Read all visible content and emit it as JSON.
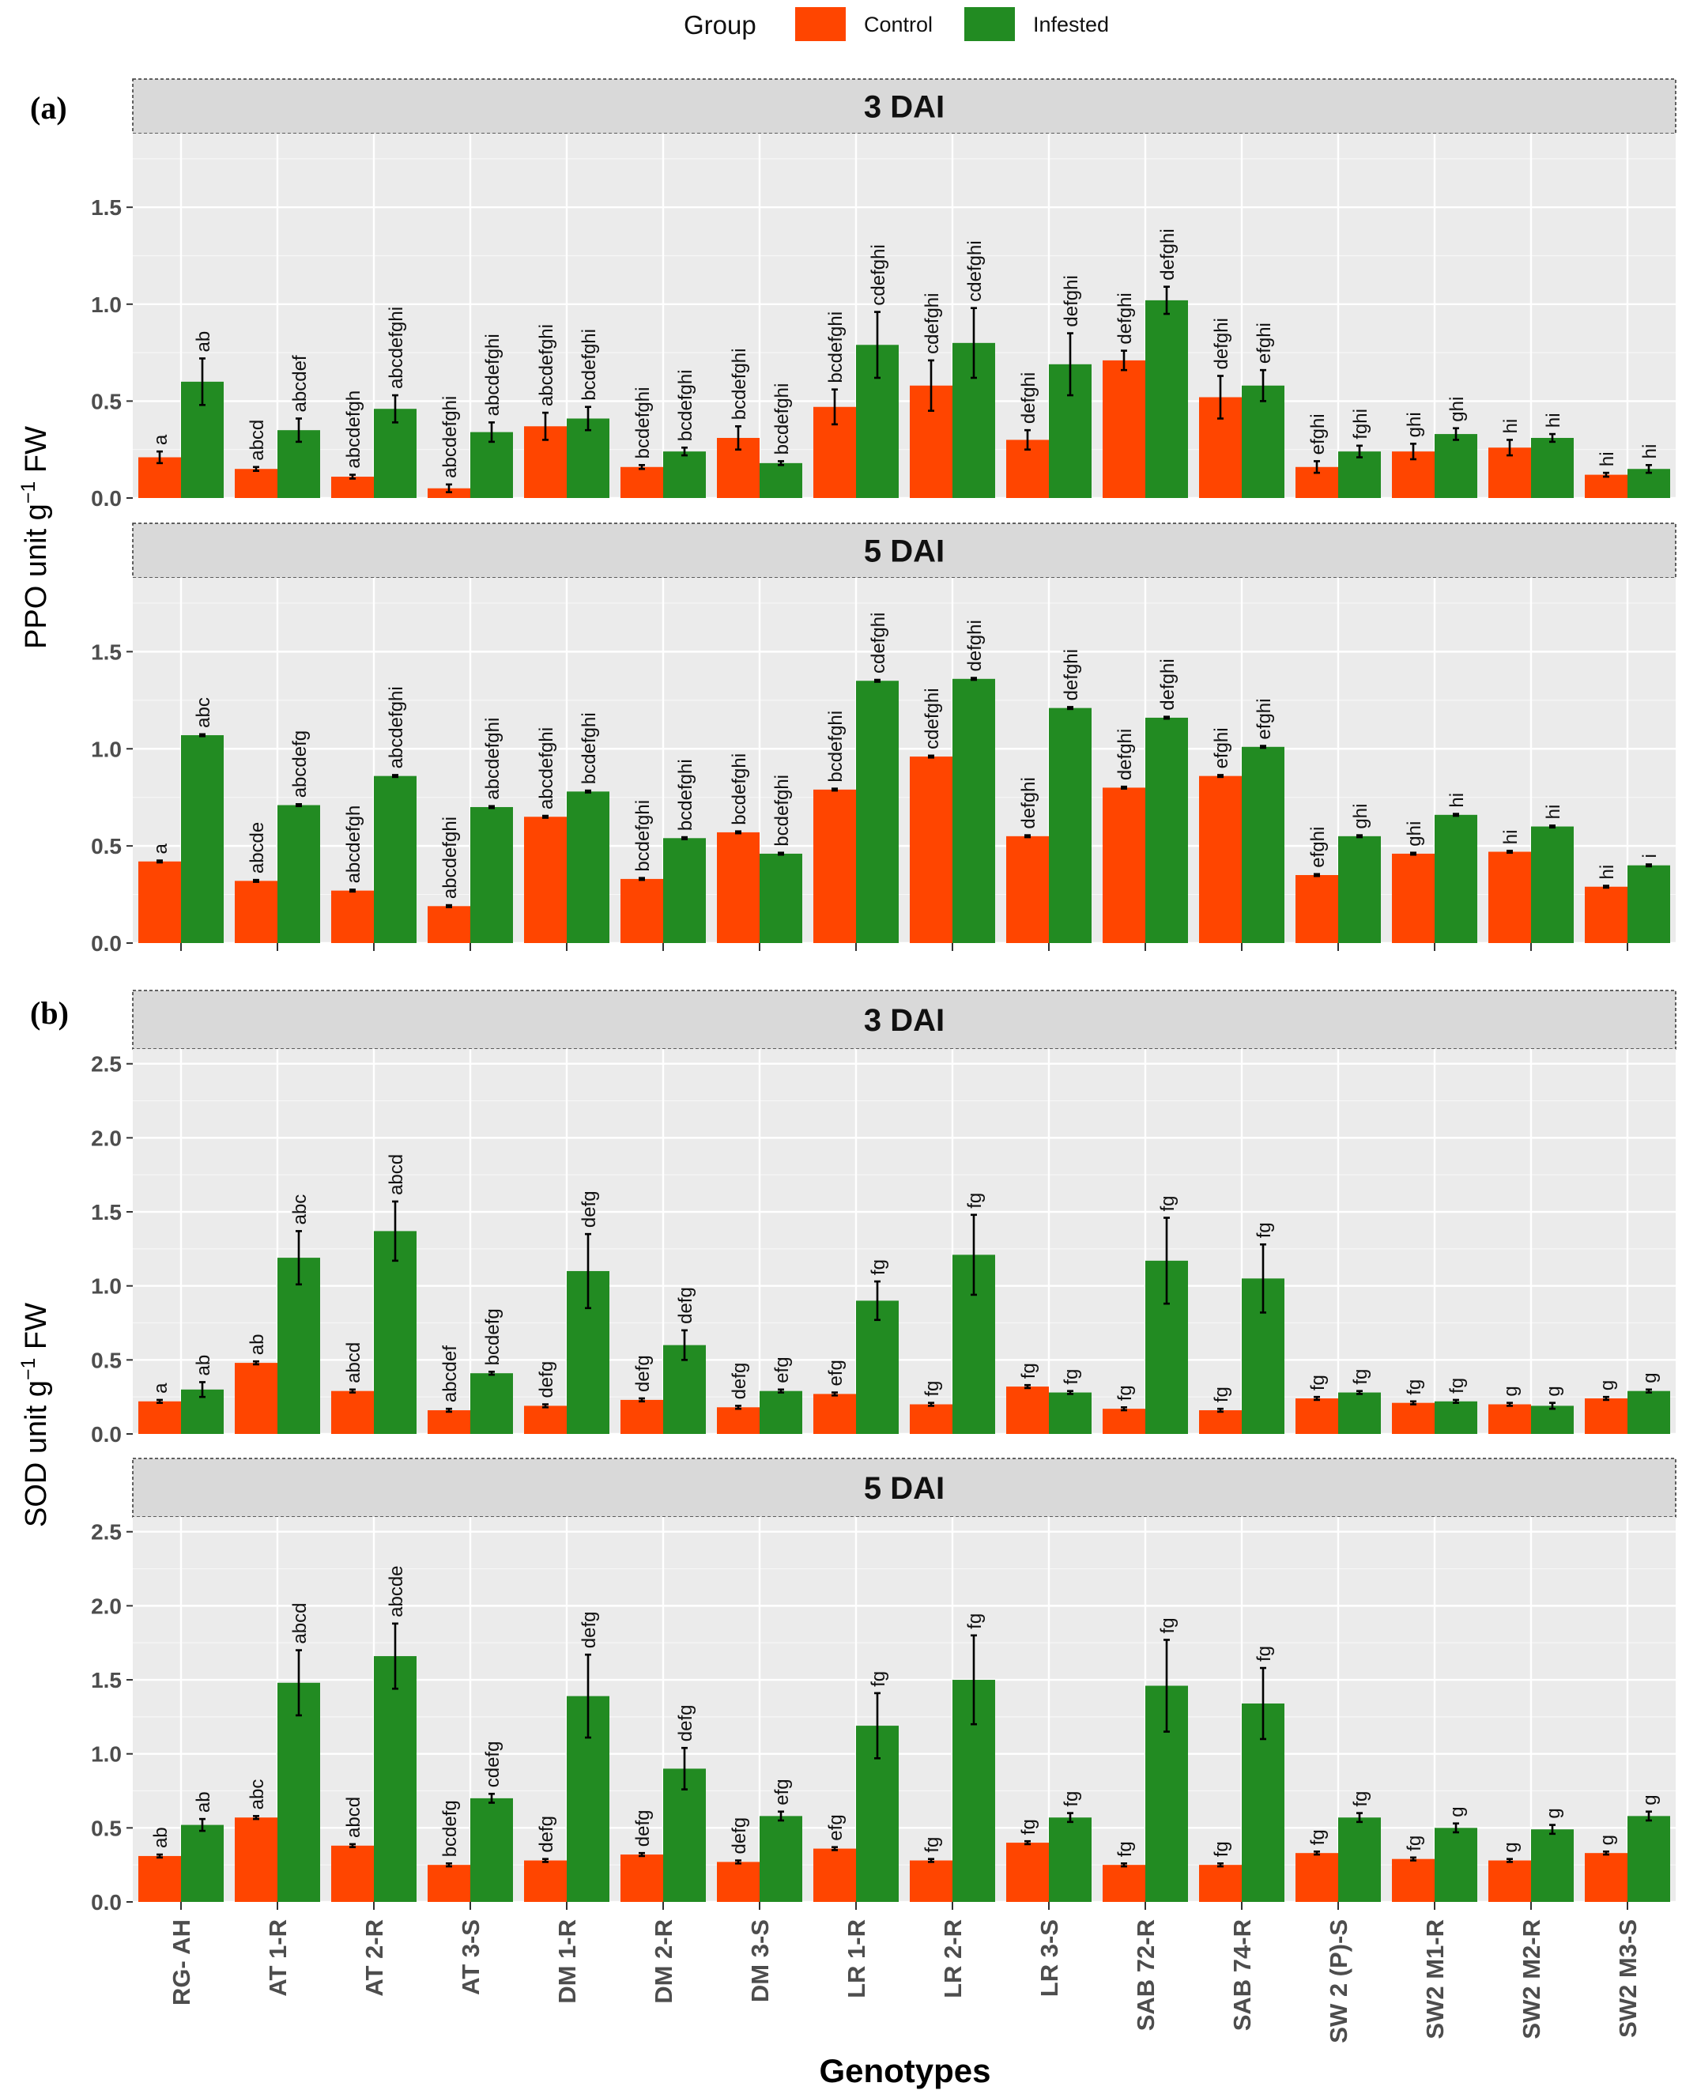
{
  "legend": {
    "title": "Group",
    "items": [
      {
        "label": "Control",
        "color": "#FF4500"
      },
      {
        "label": "Infested",
        "color": "#228B22"
      }
    ]
  },
  "chart_data": {
    "type": "bar",
    "xlabel": "Genotypes",
    "categories": [
      "RG- AH",
      "AT 1-R",
      "AT 2-R",
      "AT 3-S",
      "DM 1-R",
      "DM 2-R",
      "DM 3-S",
      "LR 1-R",
      "LR 2-R",
      "LR 3-S",
      "SAB 72-R",
      "SAB 74-R",
      "SW 2 (P)-S",
      "SW2 M1-R",
      "SW2 M2-R",
      "SW2 M3-S"
    ],
    "grid": true,
    "panels": [
      {
        "tag": "(a)",
        "ylabel_main": "PPO unit g",
        "ylabel_sup": "−1",
        "ylabel_tail": " FW",
        "facets": [
          {
            "title": "3 DAI",
            "ylim": [
              0,
              1.88
            ],
            "yticks": [
              0.0,
              0.5,
              1.0,
              1.5
            ],
            "tick_labels": [
              "0.0",
              "0.5",
              "1.0",
              "1.5"
            ],
            "series": [
              {
                "name": "Control",
                "values": [
                  0.21,
                  0.15,
                  0.11,
                  0.05,
                  0.37,
                  0.16,
                  0.31,
                  0.47,
                  0.58,
                  0.3,
                  0.71,
                  0.52,
                  0.16,
                  0.24,
                  0.26,
                  0.12
                ],
                "errors": [
                  0.03,
                  0.01,
                  0.01,
                  0.02,
                  0.07,
                  0.01,
                  0.06,
                  0.09,
                  0.13,
                  0.05,
                  0.05,
                  0.11,
                  0.03,
                  0.04,
                  0.04,
                  0.01
                ],
                "letters": [
                  "a",
                  "abcd",
                  "abcdefgh",
                  "abcdefghi",
                  "abcdefghi",
                  "bcdefghi",
                  "bcdefghi",
                  "bcdefghi",
                  "cdefghi",
                  "defghi",
                  "defghi",
                  "defghi",
                  "efghi",
                  "ghi",
                  "hi",
                  "hi"
                ]
              },
              {
                "name": "Infested",
                "values": [
                  0.6,
                  0.35,
                  0.46,
                  0.34,
                  0.41,
                  0.24,
                  0.18,
                  0.79,
                  0.8,
                  0.69,
                  1.02,
                  0.58,
                  0.24,
                  0.33,
                  0.31,
                  0.15
                ],
                "errors": [
                  0.12,
                  0.06,
                  0.07,
                  0.05,
                  0.06,
                  0.02,
                  0.01,
                  0.17,
                  0.18,
                  0.16,
                  0.07,
                  0.08,
                  0.03,
                  0.03,
                  0.02,
                  0.02
                ],
                "letters": [
                  "ab",
                  "abcdef",
                  "abcdefghi",
                  "abcdefghi",
                  "bcdefghi",
                  "bcdefghi",
                  "bcdefghi",
                  "cdefghi",
                  "cdefghi",
                  "defghi",
                  "defghi",
                  "efghi",
                  "fghi",
                  "ghi",
                  "hi",
                  "hi"
                ]
              }
            ]
          },
          {
            "title": "5 DAI",
            "ylim": [
              0,
              1.88
            ],
            "yticks": [
              0.0,
              0.5,
              1.0,
              1.5
            ],
            "tick_labels": [
              "0.0",
              "0.5",
              "1.0",
              "1.5"
            ],
            "series": [
              {
                "name": "Control",
                "values": [
                  0.42,
                  0.32,
                  0.27,
                  0.19,
                  0.65,
                  0.33,
                  0.57,
                  0.79,
                  0.96,
                  0.55,
                  0.8,
                  0.86,
                  0.35,
                  0.46,
                  0.47,
                  0.29
                ],
                "errors": [
                  0.005,
                  0.005,
                  0.005,
                  0.005,
                  0.005,
                  0.005,
                  0.005,
                  0.005,
                  0.005,
                  0.005,
                  0.005,
                  0.005,
                  0.005,
                  0.005,
                  0.005,
                  0.005
                ],
                "letters": [
                  "a",
                  "abcde",
                  "abcdefgh",
                  "abcdefghi",
                  "abcdefghi",
                  "bcdefghi",
                  "bcdefghi",
                  "bcdefghi",
                  "cdefghi",
                  "defghi",
                  "defghi",
                  "efghi",
                  "efghi",
                  "ghi",
                  "hi",
                  "hi"
                ]
              },
              {
                "name": "Infested",
                "values": [
                  1.07,
                  0.71,
                  0.86,
                  0.7,
                  0.78,
                  0.54,
                  0.46,
                  1.35,
                  1.36,
                  1.21,
                  1.16,
                  1.01,
                  0.55,
                  0.66,
                  0.6,
                  0.4
                ],
                "errors": [
                  0.005,
                  0.005,
                  0.005,
                  0.005,
                  0.005,
                  0.005,
                  0.005,
                  0.005,
                  0.005,
                  0.005,
                  0.005,
                  0.005,
                  0.005,
                  0.005,
                  0.005,
                  0.005
                ],
                "letters": [
                  "abc",
                  "abcdefg",
                  "abcdefghi",
                  "abcdefghi",
                  "bcdefghi",
                  "bcdefghi",
                  "bcdefghi",
                  "cdefghi",
                  "defghi",
                  "defghi",
                  "defghi",
                  "efghi",
                  "ghi",
                  "hi",
                  "hi",
                  "i"
                ]
              }
            ]
          }
        ]
      },
      {
        "tag": "(b)",
        "ylabel_main": "SOD unit g",
        "ylabel_sup": "−1",
        "ylabel_tail": " FW",
        "facets": [
          {
            "title": "3 DAI",
            "ylim": [
              0,
              2.6
            ],
            "yticks": [
              0.0,
              0.5,
              1.0,
              1.5,
              2.0,
              2.5
            ],
            "tick_labels": [
              "0.0",
              "0.5",
              "1.0",
              "1.5",
              "2.0",
              "2.5"
            ],
            "series": [
              {
                "name": "Control",
                "values": [
                  0.22,
                  0.48,
                  0.29,
                  0.16,
                  0.19,
                  0.23,
                  0.18,
                  0.27,
                  0.2,
                  0.32,
                  0.17,
                  0.16,
                  0.24,
                  0.21,
                  0.2,
                  0.24
                ],
                "errors": [
                  0.01,
                  0.01,
                  0.01,
                  0.01,
                  0.01,
                  0.01,
                  0.01,
                  0.01,
                  0.01,
                  0.01,
                  0.01,
                  0.01,
                  0.01,
                  0.01,
                  0.01,
                  0.01
                ],
                "letters": [
                  "a",
                  "ab",
                  "abcd",
                  "abcdef",
                  "defg",
                  "defg",
                  "defg",
                  "efg",
                  "fg",
                  "fg",
                  "fg",
                  "fg",
                  "fg",
                  "fg",
                  "g",
                  "g"
                ]
              },
              {
                "name": "Infested",
                "values": [
                  0.3,
                  1.19,
                  1.37,
                  0.41,
                  1.1,
                  0.6,
                  0.29,
                  0.9,
                  1.21,
                  0.28,
                  1.17,
                  1.05,
                  0.28,
                  0.22,
                  0.19,
                  0.29
                ],
                "errors": [
                  0.05,
                  0.18,
                  0.2,
                  0.01,
                  0.25,
                  0.1,
                  0.01,
                  0.13,
                  0.27,
                  0.01,
                  0.29,
                  0.23,
                  0.01,
                  0.01,
                  0.02,
                  0.01
                ],
                "letters": [
                  "ab",
                  "abc",
                  "abcd",
                  "bcdefg",
                  "defg",
                  "defg",
                  "efg",
                  "fg",
                  "fg",
                  "fg",
                  "fg",
                  "fg",
                  "fg",
                  "fg",
                  "g",
                  "g"
                ]
              }
            ]
          },
          {
            "title": "5 DAI",
            "ylim": [
              0,
              2.6
            ],
            "yticks": [
              0.0,
              0.5,
              1.0,
              1.5,
              2.0,
              2.5
            ],
            "tick_labels": [
              "0.0",
              "0.5",
              "1.0",
              "1.5",
              "2.0",
              "2.5"
            ],
            "series": [
              {
                "name": "Control",
                "values": [
                  0.31,
                  0.57,
                  0.38,
                  0.25,
                  0.28,
                  0.32,
                  0.27,
                  0.36,
                  0.28,
                  0.4,
                  0.25,
                  0.25,
                  0.33,
                  0.29,
                  0.28,
                  0.33
                ],
                "errors": [
                  0.01,
                  0.01,
                  0.01,
                  0.01,
                  0.01,
                  0.01,
                  0.01,
                  0.01,
                  0.01,
                  0.01,
                  0.01,
                  0.01,
                  0.01,
                  0.01,
                  0.01,
                  0.01
                ],
                "letters": [
                  "ab",
                  "abc",
                  "abcd",
                  "bcdefg",
                  "defg",
                  "defg",
                  "defg",
                  "efg",
                  "fg",
                  "fg",
                  "fg",
                  "fg",
                  "fg",
                  "fg",
                  "g",
                  "g"
                ]
              },
              {
                "name": "Infested",
                "values": [
                  0.52,
                  1.48,
                  1.66,
                  0.7,
                  1.39,
                  0.9,
                  0.58,
                  1.19,
                  1.5,
                  0.57,
                  1.46,
                  1.34,
                  0.57,
                  0.5,
                  0.49,
                  0.58
                ],
                "errors": [
                  0.04,
                  0.22,
                  0.22,
                  0.03,
                  0.28,
                  0.14,
                  0.03,
                  0.22,
                  0.3,
                  0.03,
                  0.31,
                  0.24,
                  0.03,
                  0.03,
                  0.03,
                  0.03
                ],
                "letters": [
                  "ab",
                  "abcd",
                  "abcde",
                  "cdefg",
                  "defg",
                  "defg",
                  "efg",
                  "fg",
                  "fg",
                  "fg",
                  "fg",
                  "fg",
                  "fg",
                  "g",
                  "g",
                  "g"
                ]
              }
            ]
          }
        ]
      }
    ]
  }
}
